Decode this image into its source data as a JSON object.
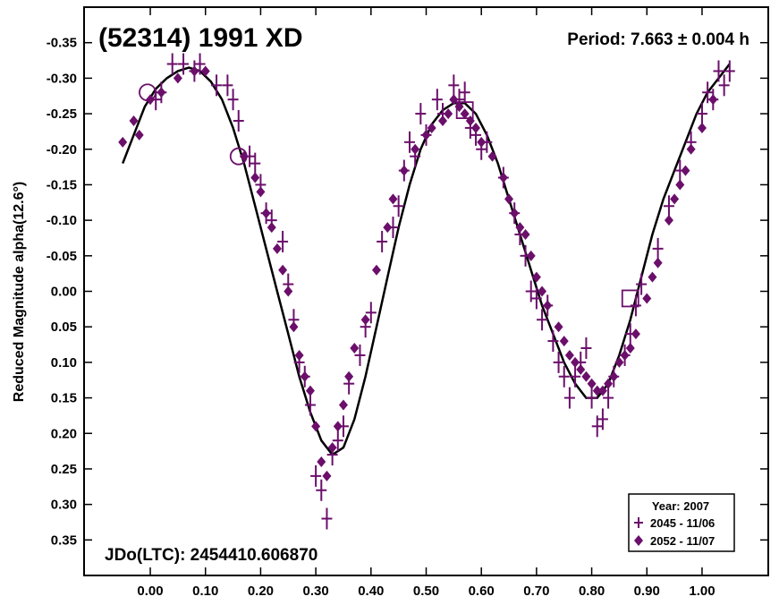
{
  "chart_data": {
    "type": "scatter",
    "title": "(52314) 1991 XD",
    "period_label": "Period: 7.663 ± 0.004 h",
    "jdo_label": "JDo(LTC): 2454410.606870",
    "ylabel": "Reduced Magnitude alpha(12.6°)",
    "xlabel": "",
    "xlim": [
      -0.12,
      1.12
    ],
    "ylim": [
      -0.4,
      0.4
    ],
    "y_inverted": true,
    "x_ticks": [
      "0.00",
      "0.10",
      "0.20",
      "0.30",
      "0.40",
      "0.50",
      "0.60",
      "0.70",
      "0.80",
      "0.90",
      "1.00"
    ],
    "y_ticks": [
      "-0.35",
      "-0.30",
      "-0.25",
      "-0.20",
      "-0.15",
      "-0.10",
      "-0.05",
      "0.00",
      "0.05",
      "0.10",
      "0.15",
      "0.20",
      "0.25",
      "0.30",
      "0.35"
    ],
    "legend": {
      "title": "Year: 2007",
      "entries": [
        "2045 - 11/06",
        "2052 - 11/07"
      ]
    },
    "colors": {
      "data": "#6b0f6b",
      "curve": "#000000",
      "frame": "#000000"
    },
    "series": [
      {
        "name": "2045 - 11/06",
        "marker": "plus-errorbar",
        "x": [
          0.01,
          0.02,
          0.04,
          0.06,
          0.08,
          0.09,
          0.12,
          0.14,
          0.15,
          0.16,
          0.18,
          0.19,
          0.2,
          0.21,
          0.22,
          0.24,
          0.25,
          0.26,
          0.27,
          0.28,
          0.29,
          0.3,
          0.31,
          0.32,
          0.33,
          0.34,
          0.35,
          0.36,
          0.38,
          0.39,
          0.4,
          0.42,
          0.44,
          0.45,
          0.46,
          0.47,
          0.48,
          0.49,
          0.5,
          0.52,
          0.53,
          0.55,
          0.56,
          0.57,
          0.58,
          0.59,
          0.6,
          0.61,
          0.64,
          0.66,
          0.67,
          0.68,
          0.69,
          0.7,
          0.71,
          0.72,
          0.73,
          0.74,
          0.75,
          0.76,
          0.77,
          0.78,
          0.79,
          0.8,
          0.81,
          0.82,
          0.83,
          0.84,
          0.86,
          0.87,
          0.88,
          0.89,
          0.92,
          0.94,
          0.96,
          0.98,
          1.0,
          1.01,
          1.02,
          1.03,
          1.04,
          1.05
        ],
        "y": [
          -0.27,
          -0.28,
          -0.32,
          -0.32,
          -0.31,
          -0.32,
          -0.29,
          -0.29,
          -0.27,
          -0.24,
          -0.19,
          -0.18,
          -0.15,
          -0.11,
          -0.1,
          -0.07,
          -0.01,
          0.04,
          0.1,
          0.12,
          0.16,
          0.26,
          0.28,
          0.32,
          0.23,
          0.21,
          0.19,
          0.13,
          0.09,
          0.05,
          0.03,
          -0.07,
          -0.09,
          -0.12,
          -0.17,
          -0.21,
          -0.19,
          -0.25,
          -0.22,
          -0.27,
          -0.25,
          -0.29,
          -0.27,
          -0.28,
          -0.23,
          -0.22,
          -0.2,
          -0.21,
          -0.16,
          -0.11,
          -0.08,
          -0.05,
          0.0,
          0.01,
          0.04,
          0.02,
          0.07,
          0.1,
          0.12,
          0.15,
          0.12,
          0.1,
          0.08,
          0.15,
          0.19,
          0.18,
          0.15,
          0.12,
          0.09,
          0.06,
          0.02,
          -0.01,
          -0.06,
          -0.12,
          -0.17,
          -0.21,
          -0.25,
          -0.28,
          -0.27,
          -0.31,
          -0.29,
          -0.31
        ]
      },
      {
        "name": "2052 - 11/07",
        "marker": "diamond",
        "x": [
          -0.05,
          -0.03,
          -0.02,
          0.0,
          0.02,
          0.05,
          0.08,
          0.1,
          0.17,
          0.19,
          0.2,
          0.21,
          0.22,
          0.23,
          0.24,
          0.25,
          0.26,
          0.27,
          0.28,
          0.29,
          0.3,
          0.31,
          0.32,
          0.33,
          0.34,
          0.35,
          0.36,
          0.37,
          0.39,
          0.41,
          0.43,
          0.44,
          0.46,
          0.48,
          0.5,
          0.51,
          0.53,
          0.54,
          0.55,
          0.56,
          0.57,
          0.58,
          0.59,
          0.6,
          0.62,
          0.64,
          0.65,
          0.66,
          0.67,
          0.68,
          0.69,
          0.7,
          0.71,
          0.72,
          0.74,
          0.75,
          0.76,
          0.77,
          0.78,
          0.79,
          0.8,
          0.81,
          0.82,
          0.83,
          0.84,
          0.85,
          0.86,
          0.87,
          0.88,
          0.9,
          0.91,
          0.92,
          0.94,
          0.95,
          0.96,
          0.97,
          0.98,
          1.0,
          1.02
        ],
        "y": [
          -0.21,
          -0.24,
          -0.22,
          -0.27,
          -0.28,
          -0.3,
          -0.31,
          -0.31,
          -0.19,
          -0.16,
          -0.14,
          -0.11,
          -0.09,
          -0.06,
          -0.03,
          0.0,
          0.05,
          0.09,
          0.12,
          0.14,
          0.19,
          0.24,
          0.26,
          0.22,
          0.19,
          0.16,
          0.12,
          0.08,
          0.04,
          -0.03,
          -0.09,
          -0.13,
          -0.17,
          -0.2,
          -0.22,
          -0.23,
          -0.24,
          -0.25,
          -0.27,
          -0.26,
          -0.25,
          -0.24,
          -0.23,
          -0.21,
          -0.19,
          -0.16,
          -0.13,
          -0.11,
          -0.09,
          -0.08,
          -0.05,
          -0.02,
          0.0,
          0.02,
          0.05,
          0.07,
          0.09,
          0.1,
          0.11,
          0.12,
          0.13,
          0.14,
          0.14,
          0.13,
          0.12,
          0.1,
          0.09,
          0.08,
          0.06,
          0.01,
          -0.02,
          -0.04,
          -0.1,
          -0.13,
          -0.15,
          -0.17,
          -0.2,
          -0.23,
          -0.27
        ]
      },
      {
        "name": "special markers",
        "marker": "special",
        "points": [
          {
            "x": -0.005,
            "y": -0.28,
            "shape": "circle"
          },
          {
            "x": 0.16,
            "y": -0.19,
            "shape": "circle"
          },
          {
            "x": 0.87,
            "y": 0.01,
            "shape": "square"
          },
          {
            "x": 0.57,
            "y": -0.255,
            "shape": "square"
          }
        ]
      }
    ],
    "fit_curve": {
      "name": "Fourier fit",
      "x": [
        -0.05,
        -0.03,
        -0.01,
        0.01,
        0.03,
        0.05,
        0.07,
        0.09,
        0.11,
        0.13,
        0.15,
        0.17,
        0.19,
        0.21,
        0.23,
        0.25,
        0.27,
        0.29,
        0.31,
        0.33,
        0.35,
        0.37,
        0.39,
        0.41,
        0.43,
        0.45,
        0.47,
        0.49,
        0.51,
        0.53,
        0.55,
        0.57,
        0.59,
        0.61,
        0.63,
        0.65,
        0.67,
        0.69,
        0.71,
        0.73,
        0.75,
        0.77,
        0.79,
        0.81,
        0.83,
        0.85,
        0.87,
        0.89,
        0.91,
        0.93,
        0.95,
        0.97,
        0.99,
        1.01,
        1.03,
        1.05
      ],
      "y": [
        -0.18,
        -0.22,
        -0.26,
        -0.285,
        -0.3,
        -0.31,
        -0.315,
        -0.31,
        -0.295,
        -0.27,
        -0.23,
        -0.18,
        -0.12,
        -0.06,
        0.0,
        0.06,
        0.12,
        0.17,
        0.21,
        0.23,
        0.22,
        0.18,
        0.12,
        0.05,
        -0.02,
        -0.09,
        -0.15,
        -0.2,
        -0.235,
        -0.255,
        -0.265,
        -0.265,
        -0.25,
        -0.22,
        -0.18,
        -0.13,
        -0.08,
        -0.03,
        0.02,
        0.06,
        0.1,
        0.13,
        0.15,
        0.15,
        0.13,
        0.09,
        0.04,
        -0.02,
        -0.08,
        -0.13,
        -0.17,
        -0.21,
        -0.25,
        -0.28,
        -0.3,
        -0.32
      ]
    }
  }
}
